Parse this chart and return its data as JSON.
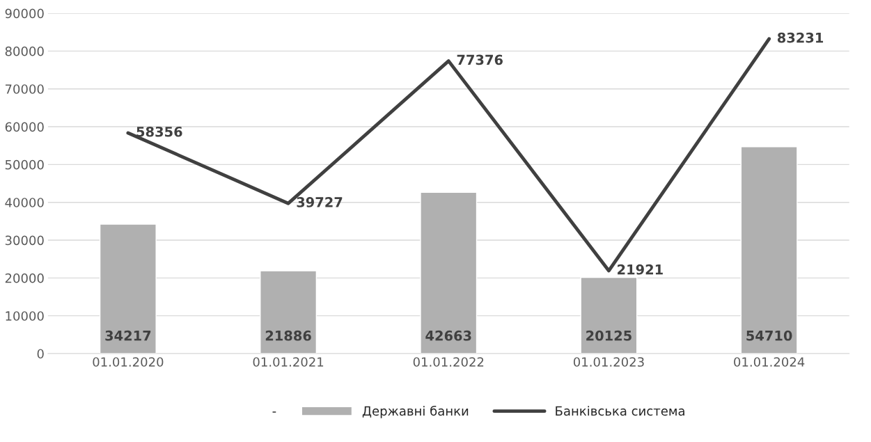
{
  "chart_data": {
    "type": "bar",
    "categories": [
      "01.01.2020",
      "01.01.2021",
      "01.01.2022",
      "01.01.2023",
      "01.01.2024"
    ],
    "series": [
      {
        "name": "Державні банки",
        "color": "#b0b0b0",
        "values": [
          34217,
          21886,
          42663,
          20125,
          54710
        ]
      },
      {
        "name": "Банківська система",
        "type": "line",
        "color": "#404040",
        "values": [
          58356,
          39727,
          77376,
          21921,
          83231
        ]
      }
    ],
    "ylim": [
      0,
      90000
    ],
    "yticks": [
      0,
      10000,
      20000,
      30000,
      40000,
      50000,
      60000,
      70000,
      80000,
      90000
    ],
    "grid": "y",
    "legend": "bottom",
    "data_labels": true,
    "marker": "none",
    "line_style": "solid",
    "annotations": [
      "-"
    ]
  }
}
